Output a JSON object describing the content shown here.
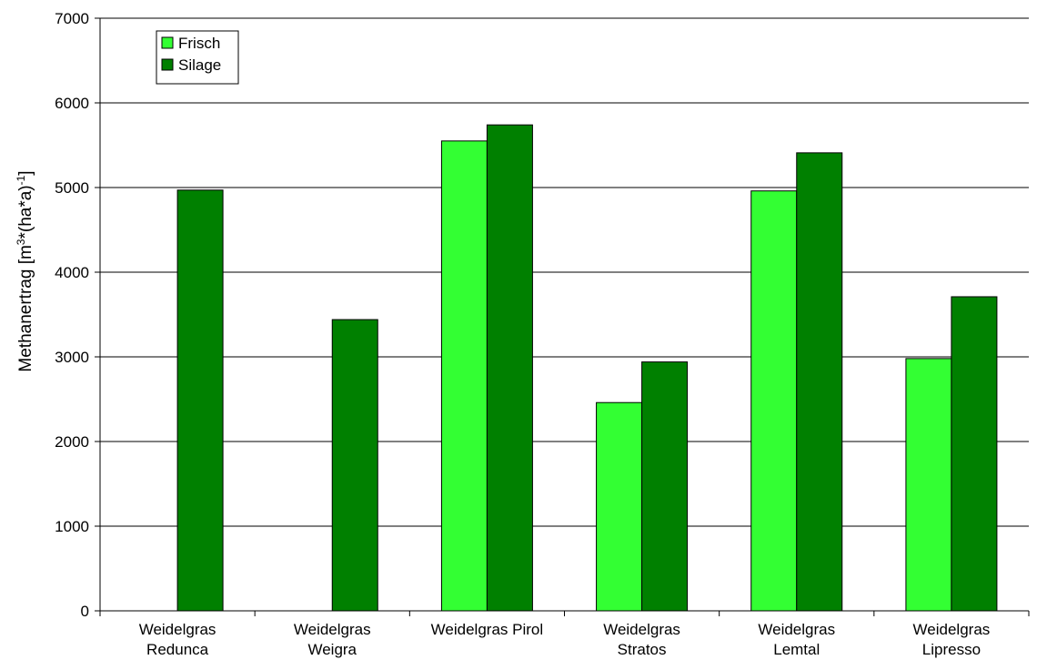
{
  "chart_data": {
    "type": "bar",
    "title": "",
    "xlabel": "",
    "ylabel": "Methanertrag [m³*(ha*a)⁻¹]",
    "ylabel_parts": {
      "main": "Methanertrag [m",
      "sup1": "3",
      "mid": "*(ha*a)",
      "sup2": "-1",
      "end": "]"
    },
    "ylim": [
      0,
      7000
    ],
    "yticks": [
      0,
      1000,
      2000,
      3000,
      4000,
      5000,
      6000,
      7000
    ],
    "grid": true,
    "legend_position": "top-left",
    "categories": [
      [
        "Weidelgras",
        "Redunca"
      ],
      [
        "Weidelgras",
        "Weigra"
      ],
      [
        "Weidelgras Pirol"
      ],
      [
        "Weidelgras",
        "Stratos"
      ],
      [
        "Weidelgras",
        "Lemtal"
      ],
      [
        "Weidelgras",
        "Lipresso"
      ]
    ],
    "series": [
      {
        "name": "Frisch",
        "color": "#33ff33",
        "values": [
          null,
          null,
          5550,
          2460,
          4960,
          2980
        ]
      },
      {
        "name": "Silage",
        "color": "#008000",
        "values": [
          4970,
          3440,
          5740,
          2940,
          5410,
          3710
        ]
      }
    ]
  }
}
